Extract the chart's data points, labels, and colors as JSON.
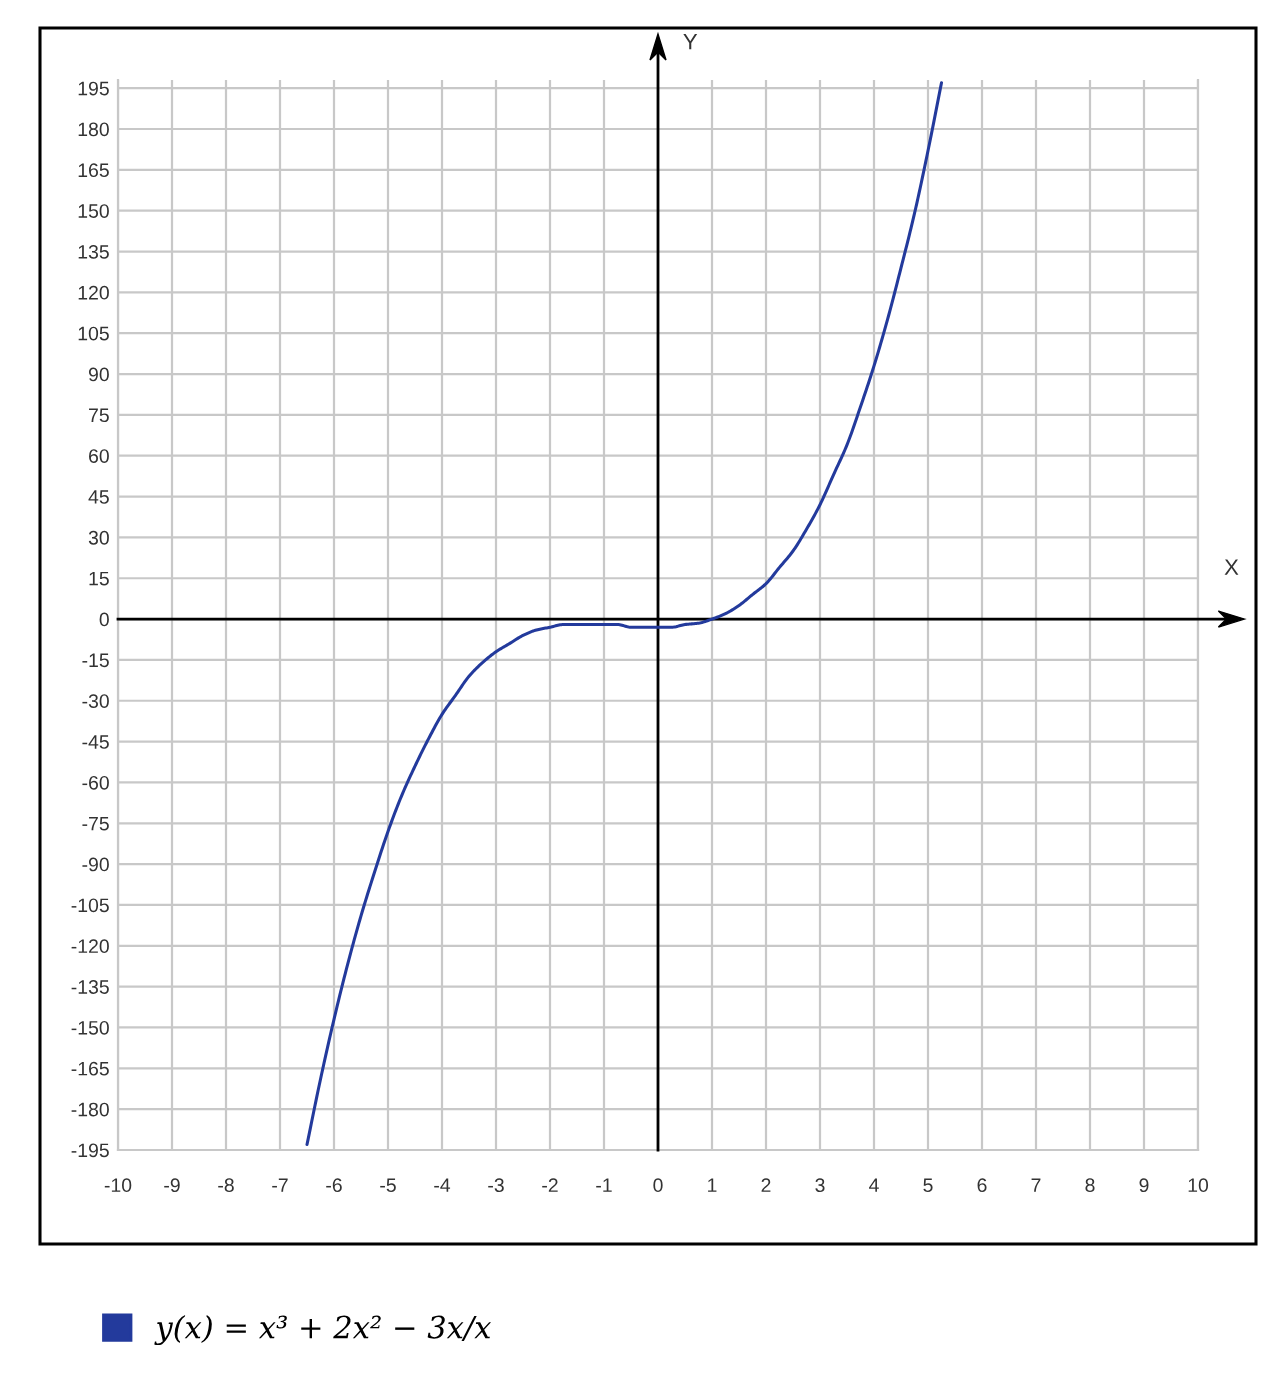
{
  "chart_data": {
    "type": "line",
    "xlabel": "X",
    "ylabel": "Y",
    "x": [
      -6.5,
      -6.25,
      -6,
      -5.75,
      -5.5,
      -5.25,
      -5,
      -4.75,
      -4.5,
      -4.25,
      -4,
      -3.75,
      -3.5,
      -3.25,
      -3,
      -2.75,
      -2.5,
      -2.25,
      -2,
      -1.75,
      -1.5,
      -1.25,
      -1,
      -0.75,
      -0.5,
      -0.25,
      0,
      0.25,
      0.5,
      0.75,
      1,
      1.25,
      1.5,
      1.75,
      2,
      2.25,
      2.5,
      2.75,
      3,
      3.25,
      3.5,
      3.75,
      4,
      4.25,
      4.5,
      4.75,
      5,
      5.25
    ],
    "series": [
      {
        "name": "y(x) = x³ + 2x² − 3x/x",
        "color": "#233a9c",
        "values": [
          -193,
          -169,
          -147,
          -127,
          -109,
          -93,
          -78,
          -65,
          -54,
          -44,
          -35,
          -28,
          -21,
          -16,
          -12,
          -9,
          -6,
          -4,
          -3,
          -2,
          -2,
          -2,
          -2,
          -2,
          -3,
          -3,
          -3,
          -3,
          -2,
          -1.5,
          0,
          2,
          5,
          9,
          13,
          19,
          25,
          33,
          42,
          53,
          64,
          78,
          93,
          110,
          129,
          149,
          172,
          197
        ]
      }
    ],
    "xlim": [
      -10,
      10
    ],
    "ylim": [
      -195,
      198
    ],
    "xticks": [
      -10,
      -9,
      -8,
      -7,
      -6,
      -5,
      -4,
      -3,
      -2,
      -1,
      0,
      1,
      2,
      3,
      4,
      5,
      6,
      7,
      8,
      9,
      10
    ],
    "yticks": [
      -195,
      -180,
      -165,
      -150,
      -135,
      -120,
      -105,
      -90,
      -75,
      -60,
      -45,
      -30,
      -15,
      0,
      15,
      30,
      45,
      60,
      75,
      90,
      105,
      120,
      135,
      150,
      165,
      180,
      195
    ],
    "grid": true,
    "legend": "bottom"
  }
}
